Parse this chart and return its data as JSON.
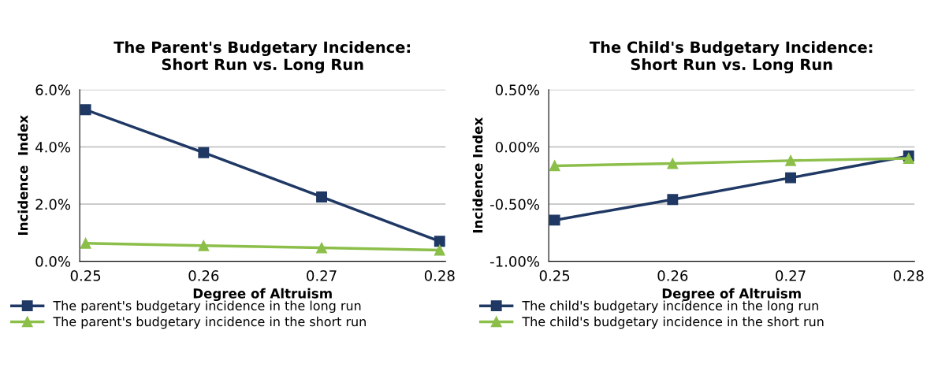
{
  "chart_data": [
    {
      "type": "line",
      "title": "The Parent's Budgetary Incidence:\nShort Run vs. Long Run",
      "xlabel": "Degree of Altruism",
      "ylabel": "Incidence  Index",
      "categories": [
        "0.25",
        "0.26",
        "0.27",
        "0.28"
      ],
      "series": [
        {
          "name": "The parent's budgetary incidence in the long run",
          "color": "#1f3864",
          "marker": "square",
          "values": [
            5.3,
            3.8,
            2.25,
            0.7
          ]
        },
        {
          "name": "The parent's budgetary incidence in the short run",
          "color": "#8cbf4a",
          "marker": "triangle",
          "values": [
            0.63,
            0.55,
            0.47,
            0.39
          ]
        }
      ],
      "ylim": [
        0,
        6
      ],
      "yticks": [
        {
          "value": 0,
          "label": "0.0%"
        },
        {
          "value": 2,
          "label": "2.0%"
        },
        {
          "value": 4,
          "label": "4.0%"
        },
        {
          "value": 6,
          "label": "6.0%"
        }
      ],
      "grid": "y",
      "legend": "bottom",
      "line_style": "solid"
    },
    {
      "type": "line",
      "title": "The Child's Budgetary Incidence:\nShort Run vs. Long Run",
      "xlabel": "Degree of Altruism",
      "ylabel": "Incidence Index",
      "categories": [
        "0.25",
        "0.26",
        "0.27",
        "0.28"
      ],
      "series": [
        {
          "name": "The child's budgetary incidence in the long run",
          "color": "#1f3864",
          "marker": "square",
          "values": [
            -0.64,
            -0.46,
            -0.27,
            -0.08
          ]
        },
        {
          "name": "The child's budgetary incidence in the short run",
          "color": "#8cbf4a",
          "marker": "triangle",
          "values": [
            -0.165,
            -0.145,
            -0.12,
            -0.1
          ]
        }
      ],
      "ylim": [
        -1,
        0.5
      ],
      "yticks": [
        {
          "value": -1,
          "label": "-1.00%"
        },
        {
          "value": -0.5,
          "label": "-0.50%"
        },
        {
          "value": 0,
          "label": "0.00%"
        },
        {
          "value": 0.5,
          "label": "0.50%"
        }
      ],
      "grid": "y",
      "legend": "bottom",
      "line_style": "solid"
    }
  ]
}
